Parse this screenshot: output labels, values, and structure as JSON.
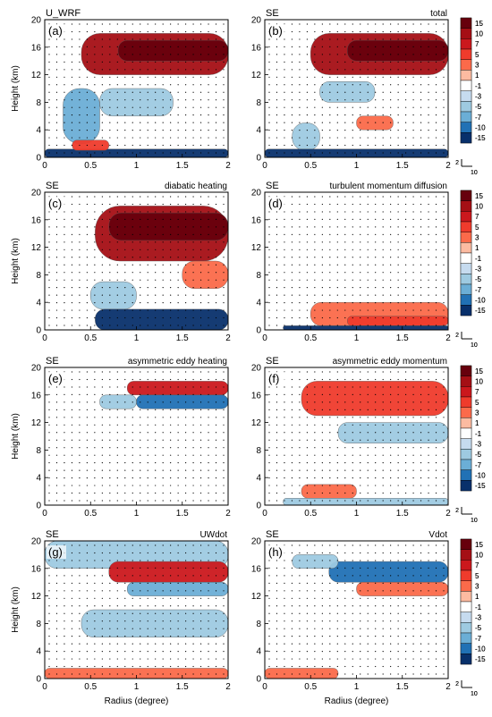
{
  "figure": {
    "ylabel": "Height (km)",
    "xlabel": "Radius (degree)",
    "x_ticks": [
      "0",
      "0.5",
      "1",
      "1.5",
      "2"
    ],
    "y_ticks": [
      "0",
      "4",
      "8",
      "12",
      "16",
      "20"
    ],
    "colorbar_levels": [
      "15",
      "10",
      "7",
      "5",
      "3",
      "1",
      "-1",
      "-3",
      "-5",
      "-7",
      "-10",
      "-15"
    ],
    "colorbar_colors": [
      "#67000d",
      "#a50f15",
      "#cb181d",
      "#ef3b2c",
      "#fb6a4a",
      "#fcbba1",
      "#ffffff",
      "#c6dbef",
      "#9ecae1",
      "#6baed6",
      "#2171b5",
      "#08306b"
    ],
    "vector_ref_label": "10",
    "vector_ref_y_label": "2"
  },
  "chart_data": [
    {
      "type": "heatmap",
      "panel": "(a)",
      "title_left": "U_WRF",
      "title_right": "",
      "xlim": [
        0,
        2
      ],
      "ylim": [
        0,
        20
      ],
      "features": [
        {
          "x0": 0.4,
          "x1": 2.0,
          "y0": 12,
          "y1": 18,
          "value": 10
        },
        {
          "x0": 0.8,
          "x1": 2.0,
          "y0": 14,
          "y1": 17,
          "value": 15
        },
        {
          "x0": 0.2,
          "x1": 0.6,
          "y0": 2,
          "y1": 10,
          "value": -5
        },
        {
          "x0": 0.6,
          "x1": 1.4,
          "y0": 6,
          "y1": 10,
          "value": -3
        },
        {
          "x0": 0.0,
          "x1": 2.0,
          "y0": 0,
          "y1": 1.2,
          "value": -15
        },
        {
          "x0": 0.3,
          "x1": 0.7,
          "y0": 1,
          "y1": 2.5,
          "value": 5
        }
      ]
    },
    {
      "type": "heatmap",
      "panel": "(b)",
      "title_left": "SE",
      "title_right": "total",
      "xlim": [
        0,
        2
      ],
      "ylim": [
        0,
        20
      ],
      "features": [
        {
          "x0": 0.5,
          "x1": 2.0,
          "y0": 12,
          "y1": 18,
          "value": 10
        },
        {
          "x0": 0.9,
          "x1": 2.0,
          "y0": 14,
          "y1": 17,
          "value": 15
        },
        {
          "x0": 0.6,
          "x1": 1.2,
          "y0": 8,
          "y1": 11,
          "value": -3
        },
        {
          "x0": 0.3,
          "x1": 0.6,
          "y0": 1,
          "y1": 5,
          "value": -3
        },
        {
          "x0": 0.0,
          "x1": 2.0,
          "y0": 0,
          "y1": 1.2,
          "value": -15
        },
        {
          "x0": 1.0,
          "x1": 1.4,
          "y0": 4,
          "y1": 6,
          "value": 3
        }
      ]
    },
    {
      "type": "heatmap",
      "panel": "(c)",
      "title_left": "SE",
      "title_right": "diabatic heating",
      "xlim": [
        0,
        2
      ],
      "ylim": [
        0,
        20
      ],
      "features": [
        {
          "x0": 0.55,
          "x1": 2.0,
          "y0": 10,
          "y1": 18,
          "value": 10
        },
        {
          "x0": 0.7,
          "x1": 2.0,
          "y0": 13,
          "y1": 17,
          "value": 15
        },
        {
          "x0": 1.5,
          "x1": 2.0,
          "y0": 6,
          "y1": 10,
          "value": 3
        },
        {
          "x0": 0.5,
          "x1": 1.0,
          "y0": 3,
          "y1": 7,
          "value": -3
        },
        {
          "x0": 0.55,
          "x1": 2.0,
          "y0": 0,
          "y1": 3,
          "value": -10
        }
      ]
    },
    {
      "type": "heatmap",
      "panel": "(d)",
      "title_left": "SE",
      "title_right": "turbulent momentum diffusion",
      "xlim": [
        0,
        2
      ],
      "ylim": [
        0,
        20
      ],
      "features": [
        {
          "x0": 0.5,
          "x1": 2.0,
          "y0": 0.6,
          "y1": 4,
          "value": 3
        },
        {
          "x0": 0.9,
          "x1": 2.0,
          "y0": 0.6,
          "y1": 2,
          "value": 5
        },
        {
          "x0": 0.2,
          "x1": 2.0,
          "y0": 0,
          "y1": 0.6,
          "value": -10
        }
      ]
    },
    {
      "type": "heatmap",
      "panel": "(e)",
      "title_left": "SE",
      "title_right": "asymmetric eddy heating",
      "xlim": [
        0,
        2
      ],
      "ylim": [
        0,
        20
      ],
      "features": [
        {
          "x0": 0.9,
          "x1": 2.0,
          "y0": 16,
          "y1": 18,
          "value": 7
        },
        {
          "x0": 1.0,
          "x1": 2.0,
          "y0": 14,
          "y1": 16,
          "value": -7
        },
        {
          "x0": 0.6,
          "x1": 1.0,
          "y0": 14,
          "y1": 16,
          "value": -3
        }
      ]
    },
    {
      "type": "heatmap",
      "panel": "(f)",
      "title_left": "SE",
      "title_right": "asymmetric eddy momentum",
      "xlim": [
        0,
        2
      ],
      "ylim": [
        0,
        20
      ],
      "features": [
        {
          "x0": 0.4,
          "x1": 2.0,
          "y0": 13,
          "y1": 18,
          "value": 5
        },
        {
          "x0": 0.8,
          "x1": 2.0,
          "y0": 9,
          "y1": 12,
          "value": -3
        },
        {
          "x0": 0.4,
          "x1": 1.0,
          "y0": 1,
          "y1": 3,
          "value": 3
        },
        {
          "x0": 0.2,
          "x1": 2.0,
          "y0": 0,
          "y1": 1,
          "value": -3
        }
      ]
    },
    {
      "type": "heatmap",
      "panel": "(g)",
      "title_left": "SE",
      "title_right": "UWdot",
      "xlim": [
        0,
        2
      ],
      "ylim": [
        0,
        20
      ],
      "features": [
        {
          "x0": 0.0,
          "x1": 2.0,
          "y0": 16,
          "y1": 20,
          "value": -3
        },
        {
          "x0": 0.7,
          "x1": 2.0,
          "y0": 14,
          "y1": 17,
          "value": 7
        },
        {
          "x0": 0.9,
          "x1": 2.0,
          "y0": 12,
          "y1": 14,
          "value": -5
        },
        {
          "x0": 0.4,
          "x1": 2.0,
          "y0": 6,
          "y1": 10,
          "value": -3
        },
        {
          "x0": 0.0,
          "x1": 2.0,
          "y0": 0,
          "y1": 1.5,
          "value": 3
        }
      ]
    },
    {
      "type": "heatmap",
      "panel": "(h)",
      "title_left": "SE",
      "title_right": "Vdot",
      "xlim": [
        0,
        2
      ],
      "ylim": [
        0,
        20
      ],
      "features": [
        {
          "x0": 0.7,
          "x1": 2.0,
          "y0": 14,
          "y1": 17,
          "value": -7
        },
        {
          "x0": 0.3,
          "x1": 0.8,
          "y0": 16,
          "y1": 18,
          "value": -3
        },
        {
          "x0": 1.0,
          "x1": 2.0,
          "y0": 12,
          "y1": 14,
          "value": 3
        },
        {
          "x0": 0.0,
          "x1": 0.8,
          "y0": 0,
          "y1": 1.5,
          "value": 3
        }
      ]
    }
  ]
}
